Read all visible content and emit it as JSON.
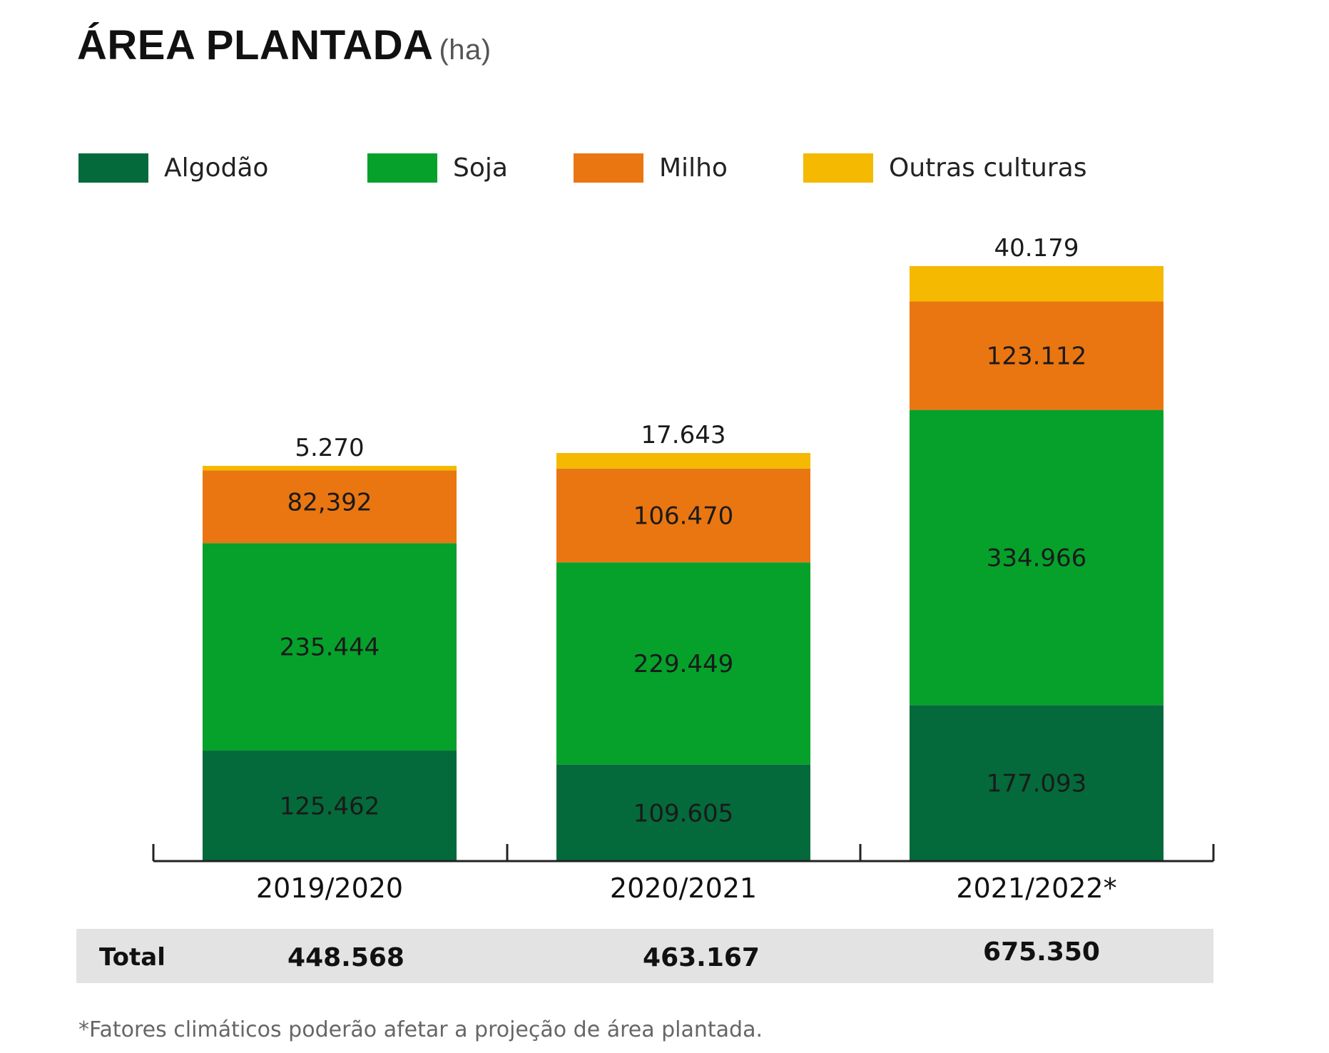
{
  "title": {
    "main": "ÁREA PLANTADA",
    "unit": "(ha)"
  },
  "legend": [
    {
      "label": "Algodão",
      "color": "#046a3b"
    },
    {
      "label": "Soja",
      "color": "#05a12b"
    },
    {
      "label": "Milho",
      "color": "#ea7611"
    },
    {
      "label": "Outras culturas",
      "color": "#f4b900"
    }
  ],
  "chart_data": {
    "type": "bar",
    "stacked": true,
    "categories": [
      "2019/2020",
      "2020/2021",
      "2021/2022*"
    ],
    "series": [
      {
        "name": "Algodão",
        "color": "#046a3b",
        "values": [
          125462,
          109605,
          177093
        ],
        "labels": [
          "125.462",
          "109.605",
          "177.093"
        ]
      },
      {
        "name": "Soja",
        "color": "#05a12b",
        "values": [
          235444,
          229449,
          334966
        ],
        "labels": [
          "235.444",
          "229.449",
          "334.966"
        ]
      },
      {
        "name": "Milho",
        "color": "#ea7611",
        "values": [
          82392,
          106470,
          123112
        ],
        "labels": [
          "82,392",
          "106.470",
          "123.112"
        ]
      },
      {
        "name": "Outras culturas",
        "color": "#f4b900",
        "values": [
          5270,
          17643,
          40179
        ],
        "labels": [
          "5.270",
          "17.643",
          "40.179"
        ]
      }
    ],
    "legend_position": "top",
    "grid": false
  },
  "totals": {
    "label": "Total",
    "values": [
      "448.568",
      "463.167",
      "675.350"
    ]
  },
  "footnote": "*Fatores climáticos poderão afetar a projeção de área plantada."
}
